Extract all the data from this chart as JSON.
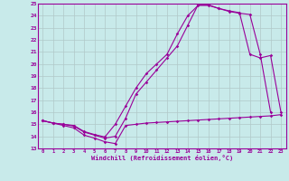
{
  "xlabel": "Windchill (Refroidissement éolien,°C)",
  "bg_color": "#c8eaea",
  "grid_color": "#b0c8c8",
  "line_color": "#990099",
  "xlim": [
    -0.5,
    23.5
  ],
  "ylim": [
    13,
    25
  ],
  "xticks": [
    0,
    1,
    2,
    3,
    4,
    5,
    6,
    7,
    8,
    9,
    10,
    11,
    12,
    13,
    14,
    15,
    16,
    17,
    18,
    19,
    20,
    21,
    22,
    23
  ],
  "yticks": [
    13,
    14,
    15,
    16,
    17,
    18,
    19,
    20,
    21,
    22,
    23,
    24,
    25
  ],
  "series1_x": [
    0,
    1,
    2,
    3,
    4,
    5,
    6,
    7,
    8,
    9,
    10,
    11,
    12,
    13,
    14,
    15,
    16,
    17,
    18,
    19,
    20,
    21,
    22,
    23
  ],
  "series1_y": [
    15.3,
    15.1,
    14.9,
    14.7,
    14.1,
    13.85,
    13.55,
    13.4,
    14.9,
    15.0,
    15.1,
    15.15,
    15.2,
    15.25,
    15.3,
    15.35,
    15.4,
    15.45,
    15.5,
    15.55,
    15.6,
    15.65,
    15.7,
    15.8
  ],
  "series2_x": [
    0,
    1,
    2,
    3,
    4,
    5,
    6,
    7,
    8,
    9,
    10,
    11,
    12,
    13,
    14,
    15,
    16,
    17,
    18,
    19,
    20,
    21,
    22,
    23
  ],
  "series2_y": [
    15.3,
    15.1,
    15.0,
    14.85,
    14.35,
    14.1,
    13.85,
    14.0,
    15.5,
    17.5,
    18.5,
    19.5,
    20.5,
    21.5,
    23.2,
    24.9,
    24.9,
    24.6,
    24.4,
    24.25,
    20.8,
    20.5,
    20.7,
    16.0
  ],
  "series3_x": [
    0,
    1,
    2,
    3,
    4,
    5,
    6,
    7,
    8,
    9,
    10,
    11,
    12,
    13,
    14,
    15,
    16,
    17,
    18,
    19,
    20,
    21,
    22,
    23
  ],
  "series3_y": [
    15.3,
    15.1,
    15.0,
    14.9,
    14.4,
    14.15,
    13.95,
    15.0,
    16.5,
    18.0,
    19.2,
    20.0,
    20.8,
    22.5,
    24.0,
    24.85,
    24.85,
    24.6,
    24.35,
    24.2,
    24.1,
    20.8,
    16.0,
    null
  ]
}
